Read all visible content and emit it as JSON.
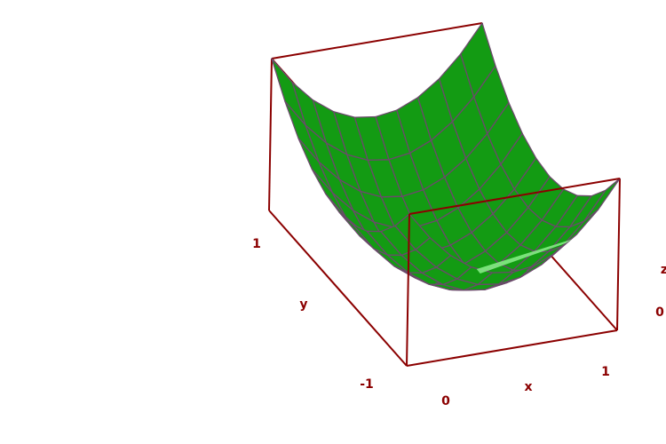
{
  "chart_data": {
    "type": "surface3d",
    "function": "z = x^2 + y^2",
    "xlim": [
      -1,
      1
    ],
    "ylim": [
      -1,
      1
    ],
    "zlim": [
      0,
      2
    ],
    "grid_divisions": 10,
    "xlabel": "x",
    "ylabel": "y",
    "zlabel": "z",
    "x_ticks": [
      "0",
      "1"
    ],
    "y_ticks": [
      "-1",
      "1"
    ],
    "z_ticks": [
      "0"
    ],
    "surface_color": "#139b13",
    "surface_underside_color": "#8cf08c",
    "mesh_color": "#6b4a6b",
    "box_color": "#8b0000",
    "label_color": "#8b0000"
  }
}
